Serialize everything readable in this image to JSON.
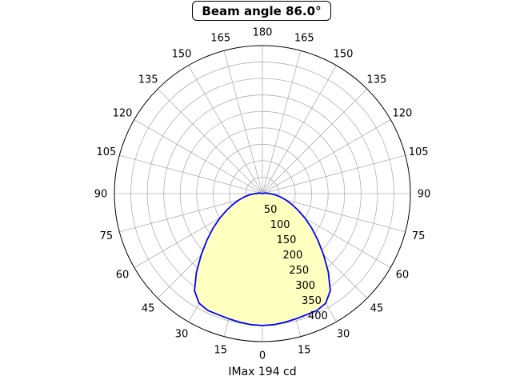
{
  "chart_data": {
    "type": "polar-line",
    "title": "Beam angle 86.0°",
    "xlabel": "IMax 194 cd",
    "angle_tick_labels": [
      "0",
      "15",
      "30",
      "45",
      "60",
      "75",
      "90",
      "105",
      "120",
      "135",
      "150",
      "165",
      "180",
      "165",
      "150",
      "135",
      "120",
      "105",
      "90",
      "75",
      "60",
      "45",
      "30",
      "15"
    ],
    "radial_ticks": [
      50,
      100,
      150,
      200,
      250,
      300,
      350,
      400
    ],
    "rlim": [
      0,
      450
    ],
    "grid": true,
    "fill_color": "#ffffbf",
    "line_color": "#0000ff",
    "series": [
      {
        "angles_deg": [
          0,
          5,
          10,
          15,
          20,
          25,
          30,
          35,
          40,
          45,
          50,
          55,
          60,
          65,
          70,
          75,
          80,
          85,
          90,
          95,
          100,
          105,
          110
        ],
        "values": [
          401,
          400,
          397,
          394,
          392,
          392,
          385,
          360,
          312,
          263,
          220,
          183,
          150,
          120,
          95,
          73,
          54,
          38,
          22,
          12,
          12,
          0,
          0
        ]
      }
    ]
  }
}
